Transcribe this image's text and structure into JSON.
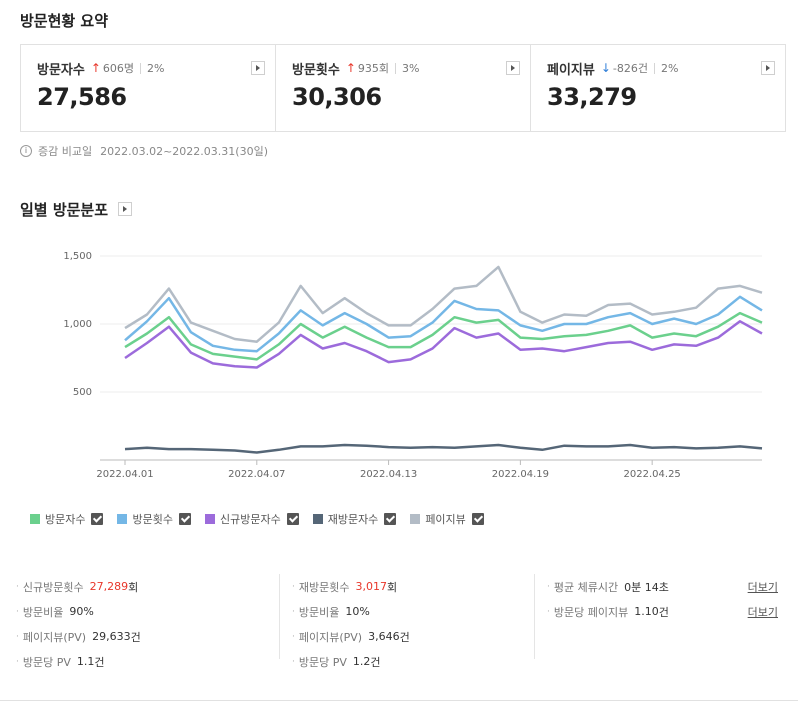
{
  "summary": {
    "title": "방문현황 요약",
    "cards": [
      {
        "label": "방문자수",
        "direction": "up",
        "arrow": "↑",
        "diff": "606명",
        "pct": "2%",
        "value": "27,586"
      },
      {
        "label": "방문횟수",
        "direction": "up",
        "arrow": "↑",
        "diff": "935회",
        "pct": "3%",
        "value": "30,306"
      },
      {
        "label": "페이지뷰",
        "direction": "down",
        "arrow": "↓",
        "diff": "-826건",
        "pct": "2%",
        "value": "33,279"
      }
    ],
    "compare_label": "증감 비교일",
    "compare_range": "2022.03.02~2022.03.31(30일)"
  },
  "daily": {
    "title": "일별 방문분포"
  },
  "chart_data": {
    "type": "line",
    "title": "일별 방문분포",
    "x": [
      "2022.04.01",
      "2022.04.02",
      "2022.04.03",
      "2022.04.04",
      "2022.04.05",
      "2022.04.06",
      "2022.04.07",
      "2022.04.08",
      "2022.04.09",
      "2022.04.10",
      "2022.04.11",
      "2022.04.12",
      "2022.04.13",
      "2022.04.14",
      "2022.04.15",
      "2022.04.16",
      "2022.04.17",
      "2022.04.18",
      "2022.04.19",
      "2022.04.20",
      "2022.04.21",
      "2022.04.22",
      "2022.04.23",
      "2022.04.24",
      "2022.04.25",
      "2022.04.26",
      "2022.04.27",
      "2022.04.28",
      "2022.04.29",
      "2022.04.30"
    ],
    "x_ticks": [
      "2022.04.01",
      "2022.04.07",
      "2022.04.13",
      "2022.04.19",
      "2022.04.25"
    ],
    "y_ticks": [
      "1,500",
      "1,000",
      "500"
    ],
    "ylim": [
      0,
      1500
    ],
    "series": [
      {
        "name": "방문자수",
        "color": "#6bd08d",
        "values": [
          830,
          930,
          1050,
          850,
          780,
          760,
          740,
          850,
          1000,
          900,
          980,
          900,
          830,
          830,
          920,
          1050,
          1010,
          1030,
          900,
          890,
          910,
          920,
          950,
          990,
          900,
          930,
          910,
          980,
          1080,
          1010
        ]
      },
      {
        "name": "방문횟수",
        "color": "#74b7e6",
        "values": [
          880,
          1020,
          1190,
          940,
          840,
          810,
          800,
          930,
          1100,
          990,
          1080,
          1000,
          900,
          910,
          1010,
          1170,
          1110,
          1100,
          990,
          950,
          1000,
          1000,
          1050,
          1080,
          1000,
          1040,
          1000,
          1070,
          1200,
          1100
        ]
      },
      {
        "name": "신규방문자수",
        "color": "#9c6bdb",
        "values": [
          750,
          860,
          980,
          790,
          710,
          690,
          680,
          780,
          920,
          820,
          860,
          800,
          720,
          740,
          820,
          970,
          900,
          930,
          810,
          820,
          800,
          830,
          860,
          870,
          810,
          850,
          840,
          900,
          1020,
          930
        ]
      },
      {
        "name": "재방문자수",
        "color": "#556677",
        "values": [
          80,
          90,
          80,
          80,
          75,
          70,
          55,
          75,
          100,
          100,
          110,
          105,
          95,
          90,
          95,
          90,
          100,
          110,
          90,
          75,
          105,
          100,
          100,
          110,
          90,
          95,
          85,
          90,
          100,
          85
        ]
      },
      {
        "name": "페이지뷰",
        "color": "#b3bcc6",
        "values": [
          970,
          1070,
          1260,
          1010,
          950,
          890,
          870,
          1010,
          1280,
          1080,
          1190,
          1080,
          990,
          990,
          1110,
          1260,
          1280,
          1420,
          1090,
          1010,
          1070,
          1060,
          1140,
          1150,
          1070,
          1090,
          1120,
          1260,
          1280,
          1230
        ]
      }
    ]
  },
  "legend": [
    {
      "label": "방문자수",
      "color": "#6bd08d"
    },
    {
      "label": "방문횟수",
      "color": "#74b7e6"
    },
    {
      "label": "신규방문자수",
      "color": "#9c6bdb"
    },
    {
      "label": "재방문자수",
      "color": "#556677"
    },
    {
      "label": "페이지뷰",
      "color": "#b3bcc6"
    }
  ],
  "stats": {
    "col1": [
      {
        "label": "신규방문횟수",
        "value": "27,289",
        "unit": "회",
        "highlight": true
      },
      {
        "label": "방문비율",
        "value": "90%",
        "unit": ""
      },
      {
        "label": "페이지뷰(PV)",
        "value": "29,633",
        "unit": "건"
      },
      {
        "label": "방문당 PV",
        "value": "1.1",
        "unit": "건"
      }
    ],
    "col2": [
      {
        "label": "재방문횟수",
        "value": "3,017",
        "unit": "회",
        "highlight": true
      },
      {
        "label": "방문비율",
        "value": "10%",
        "unit": ""
      },
      {
        "label": "페이지뷰(PV)",
        "value": "3,646",
        "unit": "건"
      },
      {
        "label": "방문당 PV",
        "value": "1.2",
        "unit": "건"
      }
    ],
    "col3": [
      {
        "label": "평균 체류시간",
        "value": "0분 14초",
        "unit": "",
        "more": "더보기"
      },
      {
        "label": "방문당 페이지뷰",
        "value": "1.10",
        "unit": "건",
        "more": "더보기"
      }
    ]
  }
}
